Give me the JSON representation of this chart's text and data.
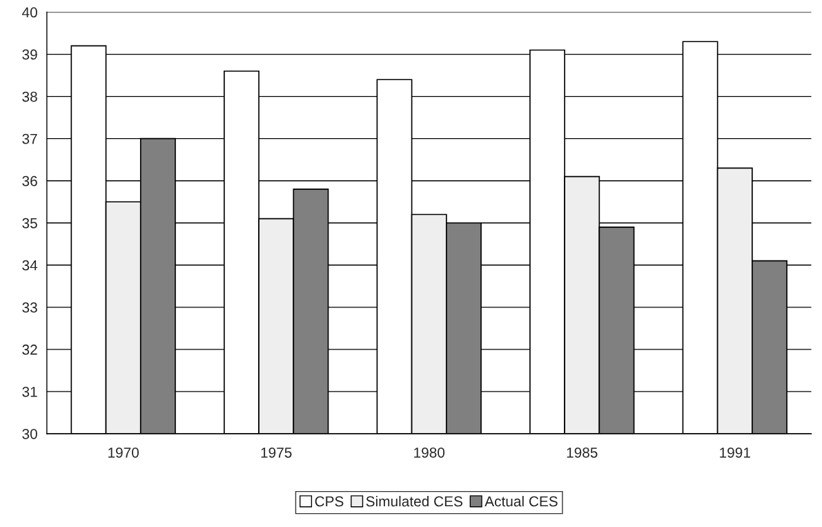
{
  "chart_data": {
    "type": "bar",
    "categories": [
      "1970",
      "1975",
      "1980",
      "1985",
      "1991"
    ],
    "series": [
      {
        "name": "CPS",
        "color": "#ffffff",
        "values": [
          39.2,
          38.6,
          38.4,
          39.1,
          39.3
        ]
      },
      {
        "name": "Simulated CES",
        "color": "#eeeeee",
        "values": [
          35.5,
          35.1,
          35.2,
          36.1,
          36.3
        ]
      },
      {
        "name": "Actual CES",
        "color": "#808080",
        "values": [
          37.0,
          35.8,
          35.0,
          34.9,
          34.1
        ]
      }
    ],
    "ylim": [
      30,
      40
    ],
    "yticks": [
      30,
      31,
      32,
      33,
      34,
      35,
      36,
      37,
      38,
      39,
      40
    ],
    "grid": "y",
    "legend": "bottom"
  }
}
